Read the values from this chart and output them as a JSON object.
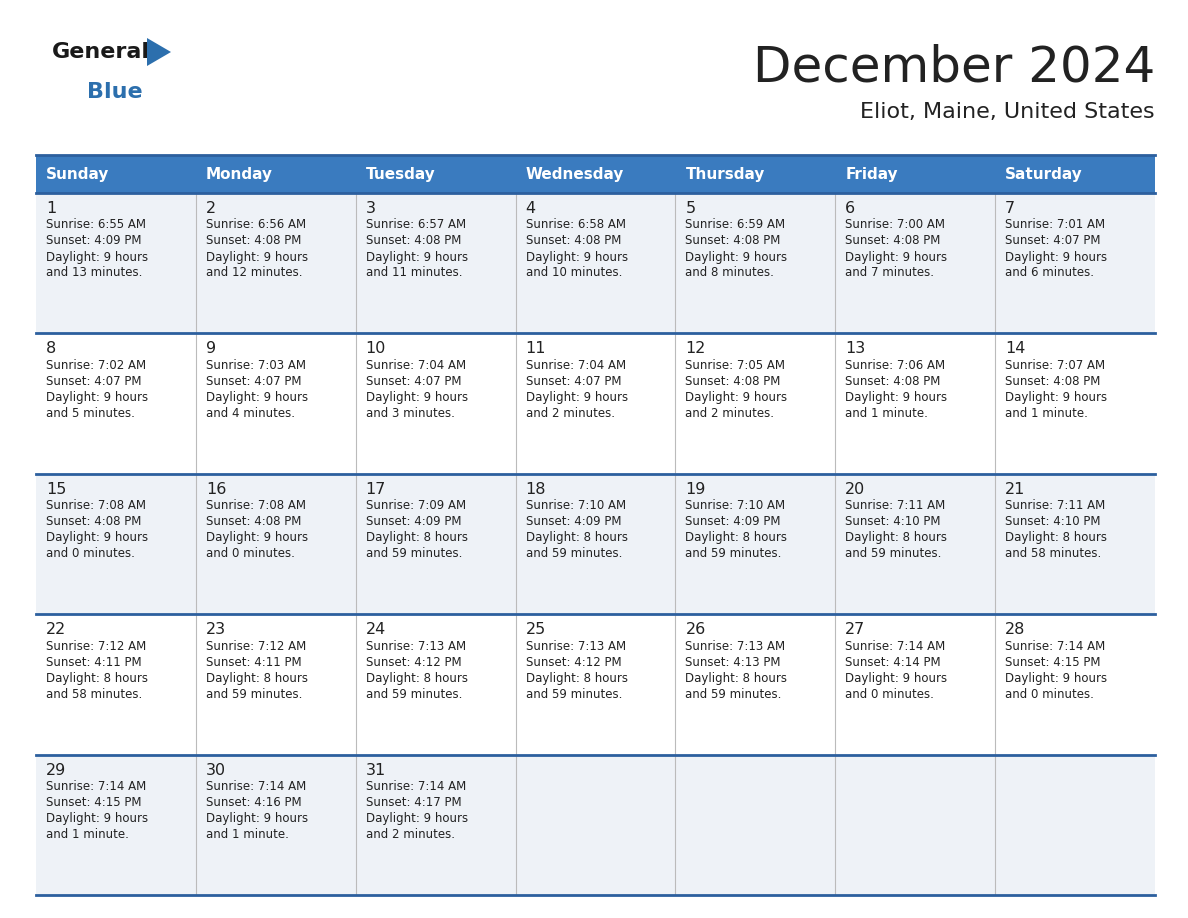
{
  "title": "December 2024",
  "subtitle": "Eliot, Maine, United States",
  "header_color": "#3a7bbf",
  "header_text_color": "#ffffff",
  "row_colors": [
    "#eef2f7",
    "#ffffff"
  ],
  "border_color": "#2c5f9e",
  "text_color": "#222222",
  "days_of_week": [
    "Sunday",
    "Monday",
    "Tuesday",
    "Wednesday",
    "Thursday",
    "Friday",
    "Saturday"
  ],
  "calendar_data": [
    {
      "day": 1,
      "col": 0,
      "row": 0,
      "sunrise": "6:55 AM",
      "sunset": "4:09 PM",
      "daylight_h": "9 hours",
      "daylight_m": "and 13 minutes."
    },
    {
      "day": 2,
      "col": 1,
      "row": 0,
      "sunrise": "6:56 AM",
      "sunset": "4:08 PM",
      "daylight_h": "9 hours",
      "daylight_m": "and 12 minutes."
    },
    {
      "day": 3,
      "col": 2,
      "row": 0,
      "sunrise": "6:57 AM",
      "sunset": "4:08 PM",
      "daylight_h": "9 hours",
      "daylight_m": "and 11 minutes."
    },
    {
      "day": 4,
      "col": 3,
      "row": 0,
      "sunrise": "6:58 AM",
      "sunset": "4:08 PM",
      "daylight_h": "9 hours",
      "daylight_m": "and 10 minutes."
    },
    {
      "day": 5,
      "col": 4,
      "row": 0,
      "sunrise": "6:59 AM",
      "sunset": "4:08 PM",
      "daylight_h": "9 hours",
      "daylight_m": "and 8 minutes."
    },
    {
      "day": 6,
      "col": 5,
      "row": 0,
      "sunrise": "7:00 AM",
      "sunset": "4:08 PM",
      "daylight_h": "9 hours",
      "daylight_m": "and 7 minutes."
    },
    {
      "day": 7,
      "col": 6,
      "row": 0,
      "sunrise": "7:01 AM",
      "sunset": "4:07 PM",
      "daylight_h": "9 hours",
      "daylight_m": "and 6 minutes."
    },
    {
      "day": 8,
      "col": 0,
      "row": 1,
      "sunrise": "7:02 AM",
      "sunset": "4:07 PM",
      "daylight_h": "9 hours",
      "daylight_m": "and 5 minutes."
    },
    {
      "day": 9,
      "col": 1,
      "row": 1,
      "sunrise": "7:03 AM",
      "sunset": "4:07 PM",
      "daylight_h": "9 hours",
      "daylight_m": "and 4 minutes."
    },
    {
      "day": 10,
      "col": 2,
      "row": 1,
      "sunrise": "7:04 AM",
      "sunset": "4:07 PM",
      "daylight_h": "9 hours",
      "daylight_m": "and 3 minutes."
    },
    {
      "day": 11,
      "col": 3,
      "row": 1,
      "sunrise": "7:04 AM",
      "sunset": "4:07 PM",
      "daylight_h": "9 hours",
      "daylight_m": "and 2 minutes."
    },
    {
      "day": 12,
      "col": 4,
      "row": 1,
      "sunrise": "7:05 AM",
      "sunset": "4:08 PM",
      "daylight_h": "9 hours",
      "daylight_m": "and 2 minutes."
    },
    {
      "day": 13,
      "col": 5,
      "row": 1,
      "sunrise": "7:06 AM",
      "sunset": "4:08 PM",
      "daylight_h": "9 hours",
      "daylight_m": "and 1 minute."
    },
    {
      "day": 14,
      "col": 6,
      "row": 1,
      "sunrise": "7:07 AM",
      "sunset": "4:08 PM",
      "daylight_h": "9 hours",
      "daylight_m": "and 1 minute."
    },
    {
      "day": 15,
      "col": 0,
      "row": 2,
      "sunrise": "7:08 AM",
      "sunset": "4:08 PM",
      "daylight_h": "9 hours",
      "daylight_m": "and 0 minutes."
    },
    {
      "day": 16,
      "col": 1,
      "row": 2,
      "sunrise": "7:08 AM",
      "sunset": "4:08 PM",
      "daylight_h": "9 hours",
      "daylight_m": "and 0 minutes."
    },
    {
      "day": 17,
      "col": 2,
      "row": 2,
      "sunrise": "7:09 AM",
      "sunset": "4:09 PM",
      "daylight_h": "8 hours",
      "daylight_m": "and 59 minutes."
    },
    {
      "day": 18,
      "col": 3,
      "row": 2,
      "sunrise": "7:10 AM",
      "sunset": "4:09 PM",
      "daylight_h": "8 hours",
      "daylight_m": "and 59 minutes."
    },
    {
      "day": 19,
      "col": 4,
      "row": 2,
      "sunrise": "7:10 AM",
      "sunset": "4:09 PM",
      "daylight_h": "8 hours",
      "daylight_m": "and 59 minutes."
    },
    {
      "day": 20,
      "col": 5,
      "row": 2,
      "sunrise": "7:11 AM",
      "sunset": "4:10 PM",
      "daylight_h": "8 hours",
      "daylight_m": "and 59 minutes."
    },
    {
      "day": 21,
      "col": 6,
      "row": 2,
      "sunrise": "7:11 AM",
      "sunset": "4:10 PM",
      "daylight_h": "8 hours",
      "daylight_m": "and 58 minutes."
    },
    {
      "day": 22,
      "col": 0,
      "row": 3,
      "sunrise": "7:12 AM",
      "sunset": "4:11 PM",
      "daylight_h": "8 hours",
      "daylight_m": "and 58 minutes."
    },
    {
      "day": 23,
      "col": 1,
      "row": 3,
      "sunrise": "7:12 AM",
      "sunset": "4:11 PM",
      "daylight_h": "8 hours",
      "daylight_m": "and 59 minutes."
    },
    {
      "day": 24,
      "col": 2,
      "row": 3,
      "sunrise": "7:13 AM",
      "sunset": "4:12 PM",
      "daylight_h": "8 hours",
      "daylight_m": "and 59 minutes."
    },
    {
      "day": 25,
      "col": 3,
      "row": 3,
      "sunrise": "7:13 AM",
      "sunset": "4:12 PM",
      "daylight_h": "8 hours",
      "daylight_m": "and 59 minutes."
    },
    {
      "day": 26,
      "col": 4,
      "row": 3,
      "sunrise": "7:13 AM",
      "sunset": "4:13 PM",
      "daylight_h": "8 hours",
      "daylight_m": "and 59 minutes."
    },
    {
      "day": 27,
      "col": 5,
      "row": 3,
      "sunrise": "7:14 AM",
      "sunset": "4:14 PM",
      "daylight_h": "9 hours",
      "daylight_m": "and 0 minutes."
    },
    {
      "day": 28,
      "col": 6,
      "row": 3,
      "sunrise": "7:14 AM",
      "sunset": "4:15 PM",
      "daylight_h": "9 hours",
      "daylight_m": "and 0 minutes."
    },
    {
      "day": 29,
      "col": 0,
      "row": 4,
      "sunrise": "7:14 AM",
      "sunset": "4:15 PM",
      "daylight_h": "9 hours",
      "daylight_m": "and 1 minute."
    },
    {
      "day": 30,
      "col": 1,
      "row": 4,
      "sunrise": "7:14 AM",
      "sunset": "4:16 PM",
      "daylight_h": "9 hours",
      "daylight_m": "and 1 minute."
    },
    {
      "day": 31,
      "col": 2,
      "row": 4,
      "sunrise": "7:14 AM",
      "sunset": "4:17 PM",
      "daylight_h": "9 hours",
      "daylight_m": "and 2 minutes."
    }
  ],
  "num_rows": 5,
  "logo_general_color": "#1a1a1a",
  "logo_blue_color": "#2c6fad",
  "logo_triangle_color": "#2c6fad"
}
